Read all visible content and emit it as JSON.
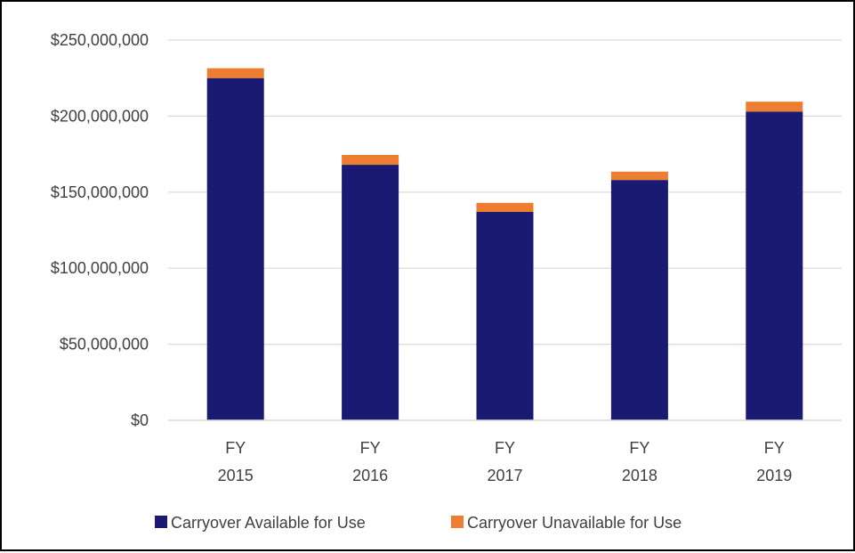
{
  "chart_data": {
    "type": "bar",
    "stacked": true,
    "categories": [
      [
        "FY",
        "2015"
      ],
      [
        "FY",
        "2016"
      ],
      [
        "FY",
        "2017"
      ],
      [
        "FY",
        "2018"
      ],
      [
        "FY",
        "2019"
      ]
    ],
    "series": [
      {
        "name": "Carryover Available for Use",
        "color": "#1a1a72",
        "values": [
          225000000,
          168000000,
          137000000,
          158000000,
          203000000
        ]
      },
      {
        "name": "Carryover Unavailable for Use",
        "color": "#ed7d31",
        "values": [
          6500000,
          6500000,
          6000000,
          5500000,
          6500000
        ]
      }
    ],
    "ylim": [
      0,
      250000000
    ],
    "yticks": [
      0,
      50000000,
      100000000,
      150000000,
      200000000,
      250000000
    ],
    "ytick_labels": [
      "$0",
      "$50,000,000",
      "$100,000,000",
      "$150,000,000",
      "$200,000,000",
      "$250,000,000"
    ],
    "grid": true,
    "legend": "bottom-center",
    "title": "",
    "xlabel": "",
    "ylabel": ""
  }
}
